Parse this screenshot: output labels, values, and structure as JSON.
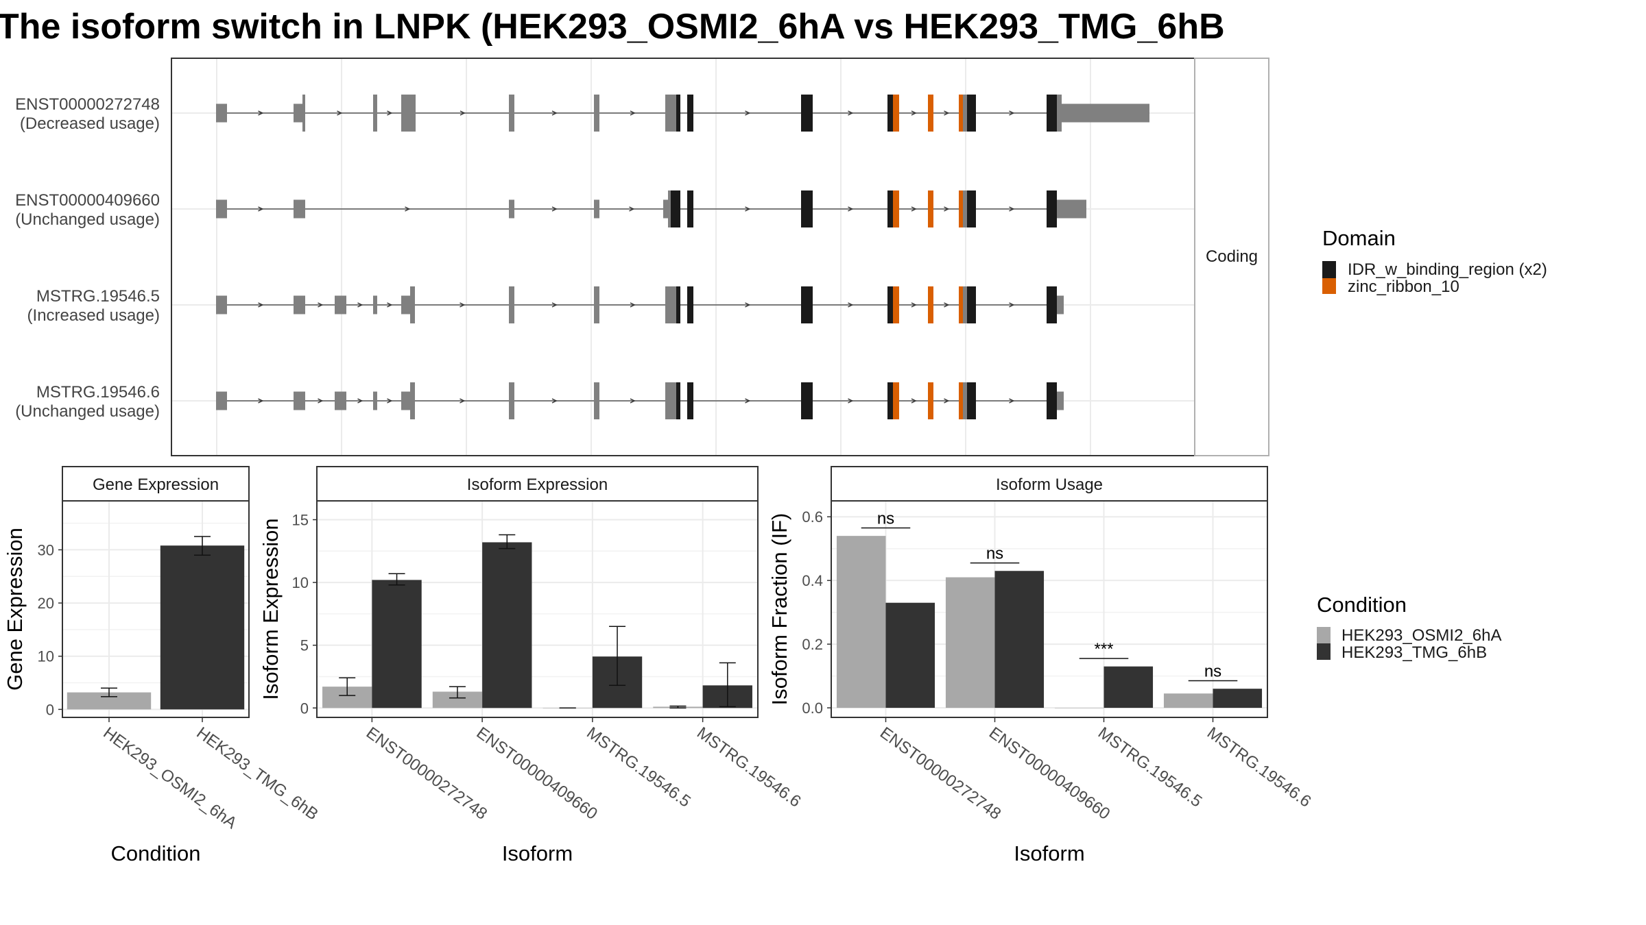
{
  "title": "The isoform switch in LNPK (HEK293_OSMI2_6hA vs HEK293_TMG_6hB",
  "structure": {
    "facet_label": "Coding",
    "legend_title": "Domain",
    "legend": [
      {
        "name": "IDR_w_binding_region (x2)",
        "color": "#1a1a1a"
      },
      {
        "name": "zinc_ribbon_10",
        "color": "#d95f02"
      }
    ],
    "exon_color": "#808080",
    "isoforms": [
      {
        "id": "ENST00000272748",
        "usage": "(Decreased usage)"
      },
      {
        "id": "ENST00000409660",
        "usage": "(Unchanged usage)"
      },
      {
        "id": "MSTRG.19546.5",
        "usage": "(Increased usage)"
      },
      {
        "id": "MSTRG.19546.6",
        "usage": "(Unchanged usage)"
      }
    ]
  },
  "condition_legend": {
    "title": "Condition",
    "items": [
      {
        "name": "HEK293_OSMI2_6hA",
        "color": "#a8a8a8"
      },
      {
        "name": "HEK293_TMG_6hB",
        "color": "#333333"
      }
    ]
  },
  "chart_data": [
    {
      "type": "bar",
      "title": "Gene Expression",
      "xlabel": "Condition",
      "ylabel": "Gene Expression",
      "ylim": [
        -1.5,
        39.2
      ],
      "yticks": [
        0,
        10,
        20,
        30
      ],
      "categories": [
        "HEK293_OSMI2_6hA",
        "HEK293_TMG_6hB"
      ],
      "values": [
        3.2,
        30.8
      ],
      "errors": [
        [
          2.4,
          4.0
        ],
        [
          29.0,
          32.5
        ]
      ]
    },
    {
      "type": "bar",
      "title": "Isoform Expression",
      "xlabel": "Isoform",
      "ylabel": "Isoform Expression",
      "ylim": [
        -0.75,
        16.5
      ],
      "yticks": [
        0,
        5,
        10,
        15
      ],
      "categories": [
        "ENST00000272748",
        "ENST00000409660",
        "MSTRG.19546.5",
        "MSTRG.19546.6"
      ],
      "series": [
        {
          "name": "HEK293_OSMI2_6hA",
          "values": [
            1.7,
            1.3,
            0.0,
            0.1
          ],
          "errors": [
            [
              1.0,
              2.4
            ],
            [
              0.8,
              1.7
            ],
            [
              0.0,
              0.0
            ],
            [
              0.0,
              0.15
            ]
          ]
        },
        {
          "name": "HEK293_TMG_6hB",
          "values": [
            10.2,
            13.2,
            4.1,
            1.8
          ],
          "errors": [
            [
              9.8,
              10.7
            ],
            [
              12.7,
              13.8
            ],
            [
              1.8,
              6.5
            ],
            [
              0.1,
              3.6
            ]
          ]
        }
      ]
    },
    {
      "type": "bar",
      "title": "Isoform Usage",
      "xlabel": "Isoform",
      "ylabel": "Isoform Fraction (IF)",
      "ylim": [
        -0.03,
        0.65
      ],
      "yticks": [
        0.0,
        0.2,
        0.4,
        0.6
      ],
      "ytick_labels": [
        "0.0",
        "0.2",
        "0.4",
        "0.6"
      ],
      "categories": [
        "ENST00000272748",
        "ENST00000409660",
        "MSTRG.19546.5",
        "MSTRG.19546.6"
      ],
      "series": [
        {
          "name": "HEK293_OSMI2_6hA",
          "values": [
            0.54,
            0.41,
            0.0,
            0.045
          ]
        },
        {
          "name": "HEK293_TMG_6hB",
          "values": [
            0.33,
            0.43,
            0.13,
            0.06
          ]
        }
      ],
      "significance": [
        {
          "label": "ns",
          "y": 0.565
        },
        {
          "label": "ns",
          "y": 0.455
        },
        {
          "label": "***",
          "y": 0.155
        },
        {
          "label": "ns",
          "y": 0.085
        }
      ]
    }
  ]
}
